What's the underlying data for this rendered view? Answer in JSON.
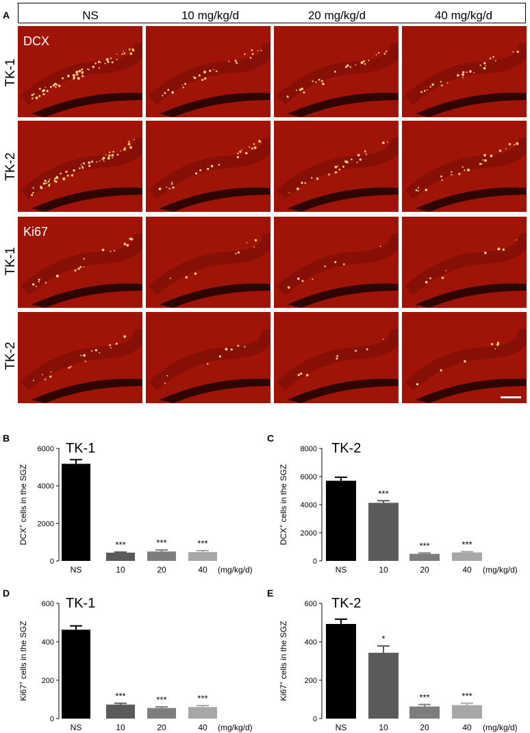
{
  "figure": {
    "panel_A_letter": "A",
    "columns": [
      "NS",
      "10 mg/kg/d",
      "20 mg/kg/d",
      "40 mg/kg/d"
    ],
    "rows": [
      "TK-1",
      "TK-2",
      "TK-1",
      "TK-2"
    ],
    "stain_labels": {
      "dcx": "DCX",
      "ki67": "Ki67"
    },
    "micro_color": "#a01408"
  },
  "chart_data": [
    {
      "panel": "B",
      "type": "bar",
      "title": "TK-1",
      "ylabel_main": "DCX",
      "ylabel_sup": "+",
      "ylabel_rest": " cells in the SGZ",
      "categories": [
        "NS",
        "10",
        "20",
        "40"
      ],
      "unit_label": "(mg/kg/d)",
      "values": [
        5180,
        440,
        500,
        470
      ],
      "errors": [
        220,
        30,
        80,
        80
      ],
      "significance": [
        "",
        "***",
        "***",
        "***"
      ],
      "colors": [
        "#000000",
        "#5a5a5a",
        "#7d7d7d",
        "#a7a7a7"
      ],
      "ylim": [
        0,
        6000
      ],
      "yticks": [
        "0",
        "2000",
        "4000",
        "6000"
      ]
    },
    {
      "panel": "C",
      "type": "bar",
      "title": "TK-2",
      "ylabel_main": "DCX",
      "ylabel_sup": "+",
      "ylabel_rest": " cells in the SGZ",
      "categories": [
        "NS",
        "10",
        "20",
        "40"
      ],
      "unit_label": "(mg/kg/d)",
      "values": [
        5700,
        4130,
        500,
        600
      ],
      "errors": [
        250,
        150,
        60,
        60
      ],
      "significance": [
        "",
        "***",
        "***",
        "***"
      ],
      "colors": [
        "#000000",
        "#5a5a5a",
        "#7d7d7d",
        "#a7a7a7"
      ],
      "ylim": [
        0,
        8000
      ],
      "yticks": [
        "0",
        "2000",
        "4000",
        "6000",
        "8000"
      ]
    },
    {
      "panel": "D",
      "type": "bar",
      "title": "TK-1",
      "ylabel_main": "Ki67",
      "ylabel_sup": "+",
      "ylabel_rest": " cells in the SGZ",
      "categories": [
        "NS",
        "10",
        "20",
        "40"
      ],
      "unit_label": "(mg/kg/d)",
      "values": [
        463,
        73,
        55,
        60
      ],
      "errors": [
        20,
        7,
        6,
        8
      ],
      "significance": [
        "",
        "***",
        "***",
        "***"
      ],
      "colors": [
        "#000000",
        "#5a5a5a",
        "#7d7d7d",
        "#a7a7a7"
      ],
      "ylim": [
        0,
        600
      ],
      "yticks": [
        "0",
        "200",
        "400",
        "600"
      ]
    },
    {
      "panel": "E",
      "type": "bar",
      "title": "TK-2",
      "ylabel_main": "Ki67",
      "ylabel_sup": "+",
      "ylabel_rest": " cells in the SGZ",
      "categories": [
        "NS",
        "10",
        "20",
        "40"
      ],
      "unit_label": "(mg/kg/d)",
      "values": [
        493,
        343,
        63,
        70
      ],
      "errors": [
        25,
        35,
        10,
        10
      ],
      "significance": [
        "",
        "*",
        "***",
        "***"
      ],
      "colors": [
        "#000000",
        "#5a5a5a",
        "#7d7d7d",
        "#a7a7a7"
      ],
      "ylim": [
        0,
        600
      ],
      "yticks": [
        "0",
        "200",
        "400",
        "600"
      ]
    }
  ]
}
